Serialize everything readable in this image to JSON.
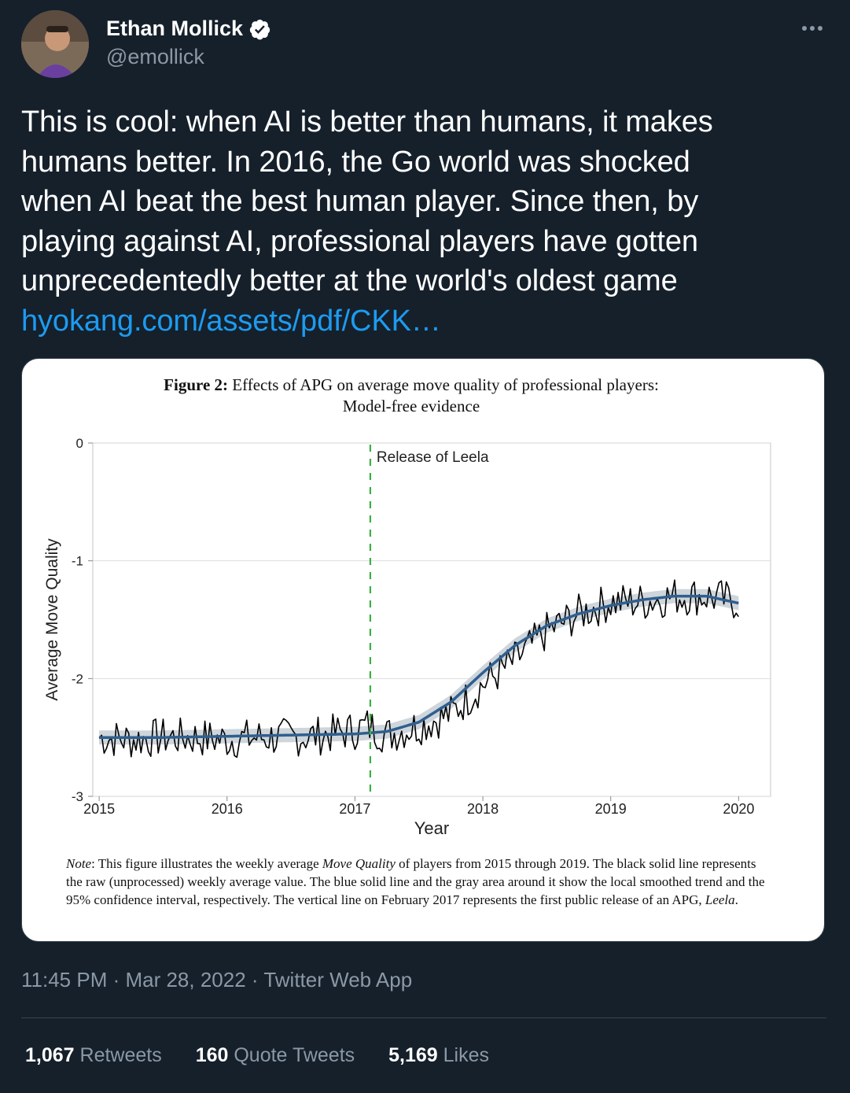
{
  "author": {
    "name": "Ethan Mollick",
    "handle": "@emollick",
    "verified": true,
    "avatar_icon": "avatar-photo"
  },
  "tweet": {
    "lines": [
      "This is cool: when AI is better than humans, it makes",
      "humans better. In 2016, the Go world was shocked",
      "when AI beat the best human player. Since then, by",
      "playing against AI, professional players have gotten",
      "unprecedentedly better at the world's oldest game"
    ],
    "link": "hyokang.com/assets/pdf/CKK…"
  },
  "figure": {
    "title_bold": "Figure 2:",
    "title_rest": " Effects of APG on average move quality of professional players:",
    "subtitle": "Model-free evidence",
    "note_label": "Note",
    "note_1": ": This figure illustrates the weekly average ",
    "note_term": "Move Quality",
    "note_2": " of players from 2015 through 2019. The black solid line represents the raw (unprocessed) weekly average value. The blue solid line and the gray area around it show the local smoothed trend and the 95% confidence interval, respectively. The vertical line on February 2017 represents the first public release of an APG, ",
    "note_name": "Leela",
    "note_end": "."
  },
  "chart_data": {
    "type": "line",
    "title": "",
    "xlabel": "Year",
    "ylabel": "Average Move Quality",
    "xlim": [
      2014.95,
      2020.25
    ],
    "ylim": [
      -3,
      0
    ],
    "xticks": [
      "2015",
      "2016",
      "2017",
      "2018",
      "2019",
      "2020"
    ],
    "yticks": [
      "0",
      "-1",
      "-2",
      "-3"
    ],
    "grid": true,
    "annotation": {
      "x": 2017.12,
      "label": "Release of Leela"
    },
    "colors": {
      "raw": "#000000",
      "smooth": "#2f5f8f",
      "ci": "#b9c3cc",
      "release": "#3cb043"
    },
    "series": [
      {
        "name": "raw",
        "x": [
          2015.0,
          2015.25,
          2015.5,
          2015.75,
          2016.0,
          2016.25,
          2016.5,
          2016.75,
          2017.0,
          2017.1,
          2017.25,
          2017.5,
          2017.75,
          2018.0,
          2018.25,
          2018.5,
          2018.75,
          2019.0,
          2019.25,
          2019.5,
          2019.75,
          2020.0
        ],
        "y": [
          -2.5,
          -2.52,
          -2.5,
          -2.5,
          -2.52,
          -2.5,
          -2.5,
          -2.48,
          -2.44,
          -2.4,
          -2.48,
          -2.4,
          -2.3,
          -2.05,
          -1.85,
          -1.6,
          -1.45,
          -1.35,
          -1.35,
          -1.3,
          -1.3,
          -1.35
        ]
      },
      {
        "name": "smooth",
        "x": [
          2015.0,
          2015.5,
          2016.0,
          2016.5,
          2017.0,
          2017.25,
          2017.5,
          2017.75,
          2018.0,
          2018.25,
          2018.5,
          2018.75,
          2019.0,
          2019.25,
          2019.5,
          2019.75,
          2020.0
        ],
        "y": [
          -2.5,
          -2.5,
          -2.49,
          -2.48,
          -2.47,
          -2.45,
          -2.37,
          -2.2,
          -1.95,
          -1.72,
          -1.55,
          -1.45,
          -1.38,
          -1.33,
          -1.3,
          -1.3,
          -1.36
        ]
      }
    ]
  },
  "timestamp": {
    "time": "11:45 PM",
    "date": "Mar 28, 2022",
    "source": "Twitter Web App",
    "sep": " · "
  },
  "stats": [
    {
      "count": "1,067",
      "label": " Retweets"
    },
    {
      "count": "160",
      "label": " Quote Tweets"
    },
    {
      "count": "5,169",
      "label": " Likes"
    }
  ]
}
